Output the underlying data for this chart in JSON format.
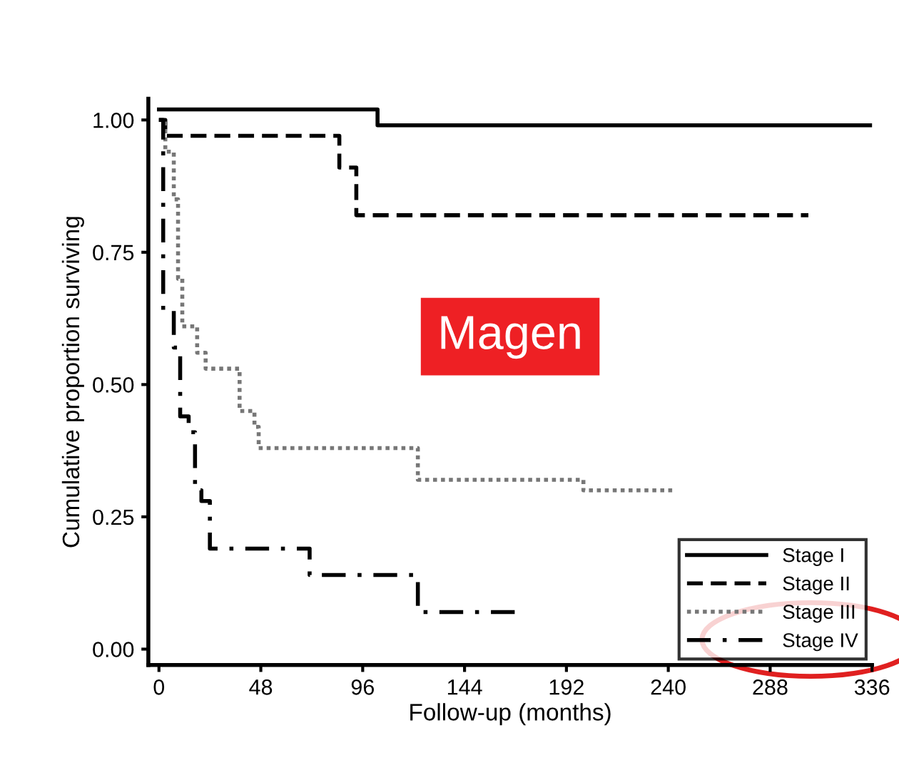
{
  "chart_data": {
    "type": "step",
    "xlabel": "Follow-up (months)",
    "ylabel": "Cumulative proportion surviving",
    "xlim": [
      -5,
      336
    ],
    "xticks": [
      0,
      48,
      96,
      144,
      192,
      240,
      288,
      336
    ],
    "ylim": [
      -0.03,
      1.04
    ],
    "yticks": [
      {
        "value": 0,
        "label": "0.00"
      },
      {
        "value": 0.25,
        "label": "0.25"
      },
      {
        "value": 0.5,
        "label": "0.50"
      },
      {
        "value": 0.75,
        "label": "0.75"
      },
      {
        "value": 1,
        "label": "1.00"
      }
    ],
    "grid": false,
    "legend": "bottom right",
    "marker": "none",
    "annotations": [
      "Magen"
    ],
    "series": [
      {
        "name": "Stage I",
        "color": "#000000",
        "line_style": "solid",
        "x": [
          0,
          103,
          336
        ],
        "values": [
          1.02,
          0.99,
          0.99
        ]
      },
      {
        "name": "Stage II",
        "color": "#000000",
        "line_style": "dashed",
        "x": [
          0,
          3,
          85,
          93,
          306
        ],
        "values": [
          1.0,
          0.97,
          0.91,
          0.82,
          0.82
        ]
      },
      {
        "name": "Stage III",
        "color": "#777777",
        "line_style": "dotted",
        "x": [
          0,
          3,
          7,
          9,
          11,
          18,
          22,
          38,
          45,
          47,
          122,
          200,
          242
        ],
        "values": [
          1.0,
          0.94,
          0.85,
          0.7,
          0.61,
          0.56,
          0.53,
          0.45,
          0.42,
          0.38,
          0.32,
          0.3,
          0.3
        ]
      },
      {
        "name": "Stage IV",
        "color": "#000000",
        "line_style": "dashdot",
        "x": [
          0,
          2,
          7,
          10,
          14,
          17,
          20,
          24,
          71,
          122,
          169
        ],
        "values": [
          1.0,
          0.64,
          0.57,
          0.44,
          0.41,
          0.3,
          0.28,
          0.19,
          0.14,
          0.07,
          0.07
        ]
      }
    ]
  }
}
